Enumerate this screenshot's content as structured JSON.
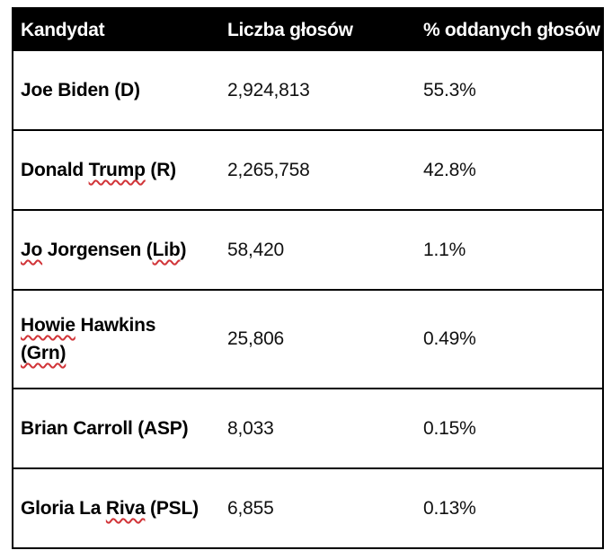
{
  "table": {
    "headers": {
      "candidate": "Kandydat",
      "votes": "Liczba głosów",
      "percent": "% oddanych głosów"
    },
    "colors": {
      "header_bg": "#000000",
      "header_text": "#ffffff",
      "border": "#000000",
      "body_text": "#000000",
      "spellcheck_underline": "#d13438",
      "background": "#ffffff"
    },
    "rows": [
      {
        "parts": [
          "Joe Biden (D)"
        ],
        "votes": "2,924,813",
        "percent": "55.3%",
        "spellcheck_underlined": []
      },
      {
        "parts": [
          "Donald ",
          "Trump",
          " (R)"
        ],
        "votes": "2,265,758",
        "percent": "42.8%",
        "spellcheck_underlined": [
          "Trump"
        ]
      },
      {
        "parts": [
          "Jo",
          " Jorgensen (",
          "Lib",
          ")"
        ],
        "votes": "58,420",
        "percent": "1.1%",
        "spellcheck_underlined": [
          "Jo",
          "Lib"
        ]
      },
      {
        "parts": [
          "Howie",
          " Hawkins",
          "(Grn)"
        ],
        "votes": "25,806",
        "percent": "0.49%",
        "spellcheck_underlined": [
          "Howie",
          "(Grn)"
        ]
      },
      {
        "parts": [
          "Brian Carroll (ASP)"
        ],
        "votes": "8,033",
        "percent": "0.15%",
        "spellcheck_underlined": []
      },
      {
        "parts": [
          "Gloria La ",
          "Riva",
          " (PSL)"
        ],
        "votes": "6,855",
        "percent": "0.13%",
        "spellcheck_underlined": [
          "Riva"
        ]
      }
    ]
  }
}
